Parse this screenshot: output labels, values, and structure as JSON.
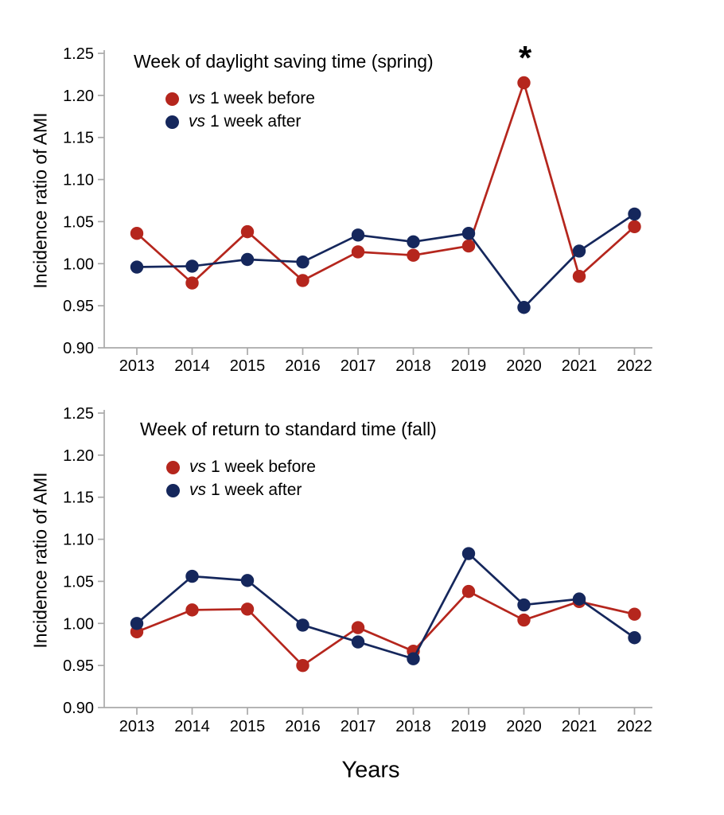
{
  "figure": {
    "ylabel": "Incidence ratio of AMI",
    "xlabel": "Years",
    "colors": {
      "before": "#b5261d",
      "after": "#15275c",
      "axis": "#a9a9a9",
      "text": "#000000"
    },
    "years": [
      "2013",
      "2014",
      "2015",
      "2016",
      "2017",
      "2018",
      "2019",
      "2020",
      "2021",
      "2022"
    ],
    "yticks": [
      "0.90",
      "0.95",
      "1.00",
      "1.05",
      "1.10",
      "1.15",
      "1.20",
      "1.25"
    ],
    "ylim": [
      0.9,
      1.25
    ]
  },
  "legend": {
    "items": [
      {
        "vs": "vs",
        "label": "1 week before",
        "color": "#b5261d"
      },
      {
        "vs": "vs",
        "label": "1 week after",
        "color": "#15275c"
      }
    ]
  },
  "chart_data": [
    {
      "type": "line",
      "title": "Week of daylight saving time (spring)",
      "categories": [
        "2013",
        "2014",
        "2015",
        "2016",
        "2017",
        "2018",
        "2019",
        "2020",
        "2021",
        "2022"
      ],
      "xlabel": "Years",
      "ylabel": "Incidence ratio of AMI",
      "ylim": [
        0.9,
        1.25
      ],
      "grid": false,
      "legend_position": "upper-left-inside",
      "series": [
        {
          "name": "vs 1 week before",
          "color": "#b5261d",
          "values": [
            1.036,
            0.977,
            1.038,
            0.98,
            1.014,
            1.01,
            1.021,
            1.215,
            0.985,
            1.044
          ]
        },
        {
          "name": "vs 1 week after",
          "color": "#15275c",
          "values": [
            0.996,
            0.997,
            1.005,
            1.002,
            1.034,
            1.026,
            1.036,
            0.948,
            1.015,
            1.059
          ]
        }
      ],
      "annotation": {
        "text": "*",
        "year": "2020"
      }
    },
    {
      "type": "line",
      "title": "Week of return to standard time (fall)",
      "categories": [
        "2013",
        "2014",
        "2015",
        "2016",
        "2017",
        "2018",
        "2019",
        "2020",
        "2021",
        "2022"
      ],
      "xlabel": "Years",
      "ylabel": "Incidence ratio of AMI",
      "ylim": [
        0.9,
        1.25
      ],
      "grid": false,
      "legend_position": "upper-left-inside",
      "series": [
        {
          "name": "vs 1 week before",
          "color": "#b5261d",
          "values": [
            0.99,
            1.016,
            1.017,
            0.95,
            0.995,
            0.967,
            1.038,
            1.004,
            1.026,
            1.011
          ]
        },
        {
          "name": "vs 1 week after",
          "color": "#15275c",
          "values": [
            1.0,
            1.056,
            1.051,
            0.998,
            0.978,
            0.958,
            1.083,
            1.022,
            1.029,
            0.983
          ]
        }
      ],
      "annotation": null
    }
  ]
}
